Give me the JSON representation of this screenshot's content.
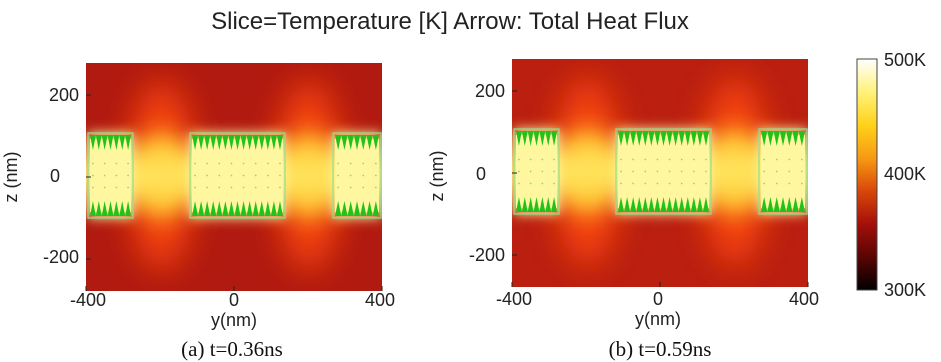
{
  "title": "Slice=Temperature [K] Arrow: Total Heat Flux",
  "panels": [
    {
      "caption": "(a) t=0.36ns",
      "xlabel": "y(nm)",
      "ylabel": "z (nm)",
      "x_ticks": [
        "-400",
        "0",
        "400"
      ],
      "y_ticks": [
        "200",
        "0",
        "-200"
      ]
    },
    {
      "caption": "(b) t=0.59ns",
      "xlabel": "y(nm)",
      "ylabel": "z (nm)",
      "x_ticks": [
        "-400",
        "0",
        "400"
      ],
      "y_ticks": [
        "200",
        "0",
        "-200"
      ]
    }
  ],
  "colorbar": {
    "labels": [
      "500K",
      "400K",
      "300K"
    ],
    "stops": [
      "#ffffff",
      "#fff27a",
      "#ffd21a",
      "#f79a12",
      "#d9470a",
      "#a3100a",
      "#5a0404",
      "#000000"
    ]
  },
  "colors": {
    "background_a": "#b11a10",
    "background_b": "#ba1f10",
    "wire_fill": "#fff7a0",
    "glow": "#ff4a10",
    "wire_outline": "#8ee08e",
    "arrow": "#22c21a"
  }
}
